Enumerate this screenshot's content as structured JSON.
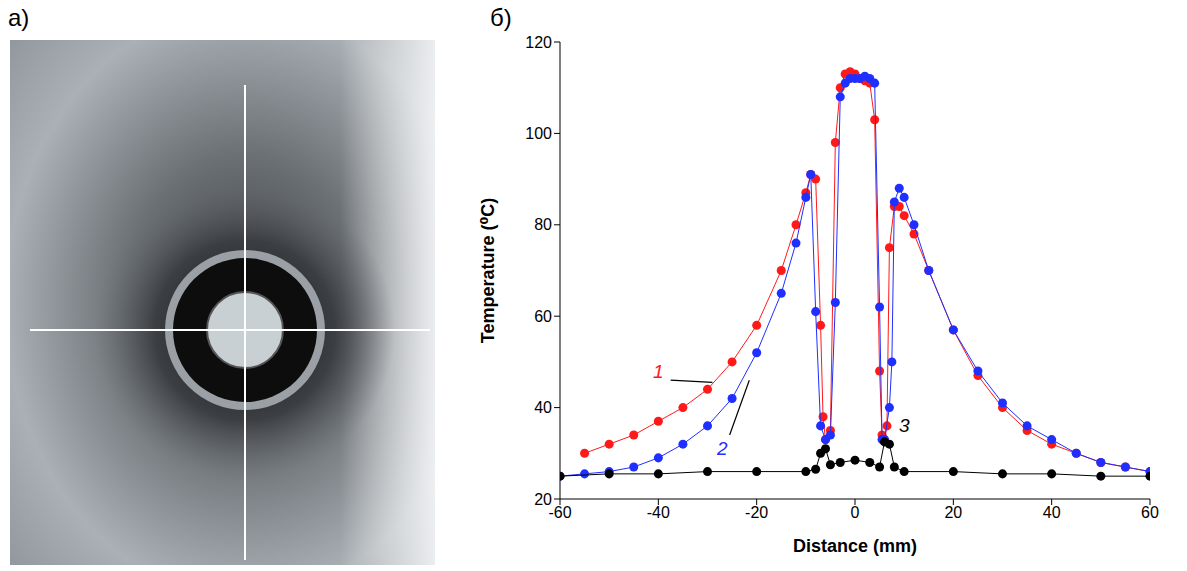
{
  "panel_labels": {
    "a": "а)",
    "b": "б)"
  },
  "chart_data": {
    "type": "scatter",
    "x_label": "Distance (mm)",
    "y_label": "Temperature (⁰C)",
    "xlim": [
      -60,
      60
    ],
    "xticks": [
      -60,
      -40,
      -20,
      0,
      20,
      40,
      60
    ],
    "ylim": [
      20,
      120
    ],
    "yticks": [
      20,
      40,
      60,
      80,
      100,
      120
    ],
    "grid": false,
    "series": [
      {
        "name": "1",
        "color": "#ff1a1a",
        "marker": "circle",
        "line_style": "solid",
        "x": [
          -55,
          -50,
          -45,
          -40,
          -35,
          -30,
          -25,
          -20,
          -15,
          -12,
          -10,
          -9,
          -8,
          -7,
          -6.5,
          -6,
          -5,
          -4,
          -3,
          -2,
          -1,
          0,
          1,
          2,
          3,
          4,
          5,
          5.5,
          6,
          6.5,
          7,
          8,
          9,
          10,
          12,
          15,
          20,
          25,
          30,
          35,
          40,
          45,
          50,
          55,
          60
        ],
        "values": [
          30,
          32,
          34,
          37,
          40,
          44,
          50,
          58,
          70,
          80,
          87,
          91,
          90,
          58,
          38,
          33,
          35,
          98,
          110,
          113,
          113.5,
          113,
          112,
          111.5,
          111,
          103,
          48,
          34,
          33,
          36,
          75,
          84,
          84,
          82,
          78,
          70,
          57,
          47,
          40,
          35,
          32,
          30,
          28,
          27,
          26
        ]
      },
      {
        "name": "2",
        "color": "#1f2fff",
        "marker": "circle",
        "line_style": "solid",
        "x": [
          -60,
          -55,
          -50,
          -45,
          -40,
          -35,
          -30,
          -25,
          -20,
          -15,
          -12,
          -10,
          -9,
          -8,
          -7,
          -6,
          -5,
          -4,
          -3,
          -2,
          -1,
          0,
          1,
          2,
          3,
          4,
          5,
          5.5,
          6,
          7,
          7.5,
          8,
          9,
          10,
          12,
          15,
          20,
          25,
          30,
          35,
          40,
          45,
          50,
          55,
          60
        ],
        "values": [
          25,
          25.5,
          26,
          27,
          29,
          32,
          36,
          42,
          52,
          65,
          76,
          86,
          91,
          61,
          36,
          33,
          34,
          63,
          108,
          111,
          112,
          112,
          112,
          112.5,
          112,
          111,
          62,
          33,
          33,
          40,
          50,
          85,
          88,
          86,
          80,
          70,
          57,
          48,
          41,
          36,
          33,
          30,
          28,
          27,
          26
        ]
      },
      {
        "name": "3",
        "color": "#000000",
        "marker": "circle",
        "line_style": "solid",
        "x": [
          -60,
          -50,
          -40,
          -30,
          -20,
          -10,
          -8,
          -7,
          -6,
          -5,
          -3,
          0,
          3,
          5,
          6,
          7,
          8,
          10,
          20,
          30,
          40,
          50,
          60
        ],
        "values": [
          25,
          25.5,
          25.5,
          26,
          26,
          26,
          26.5,
          30,
          31,
          27.5,
          28,
          28.5,
          28,
          27,
          32.5,
          32,
          27,
          26,
          26,
          25.5,
          25.5,
          25,
          25
        ]
      }
    ]
  }
}
